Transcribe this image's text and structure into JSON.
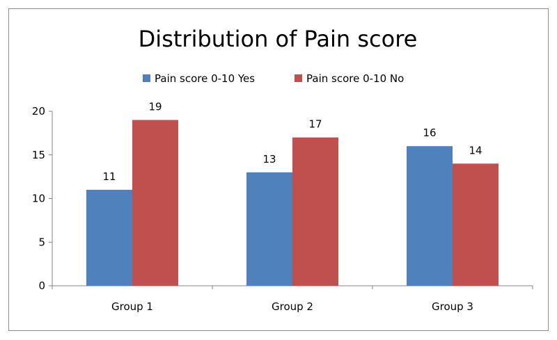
{
  "chart_data": {
    "type": "bar",
    "title": "Distribution of Pain score",
    "xlabel": "",
    "ylabel": "",
    "categories": [
      "Group 1",
      "Group 2",
      "Group 3"
    ],
    "series": [
      {
        "name": "Pain score 0-10 Yes",
        "values": [
          11,
          13,
          16
        ],
        "color": "#4f81bd"
      },
      {
        "name": "Pain score 0-10 No",
        "values": [
          19,
          17,
          14
        ],
        "color": "#c0504d"
      }
    ],
    "ylim": [
      0,
      20
    ],
    "yticks": [
      0,
      5,
      10,
      15,
      20
    ],
    "grid": false,
    "legend_position": "top",
    "data_labels": true
  }
}
